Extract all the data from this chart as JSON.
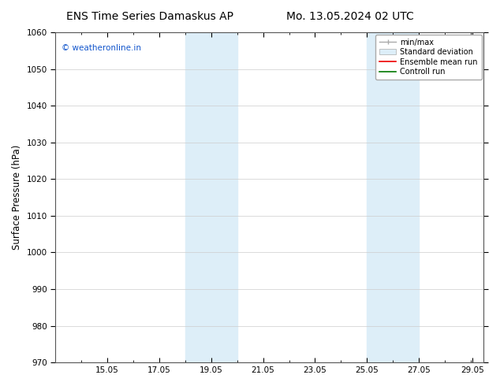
{
  "title_left": "ENS Time Series Damaskus AP",
  "title_right": "Mo. 13.05.2024 02 UTC",
  "ylabel": "Surface Pressure (hPa)",
  "ylim": [
    970,
    1060
  ],
  "yticks": [
    970,
    980,
    990,
    1000,
    1010,
    1020,
    1030,
    1040,
    1050,
    1060
  ],
  "xlim_start": 13.0,
  "xlim_end": 29.5,
  "xticks": [
    15.0,
    17.0,
    19.0,
    21.0,
    23.0,
    25.0,
    27.0,
    29.05
  ],
  "xticklabels": [
    "15.05",
    "17.05",
    "19.05",
    "21.05",
    "23.05",
    "25.05",
    "27.05",
    "29.05"
  ],
  "shaded_bands": [
    {
      "xmin": 18.0,
      "xmax": 19.0,
      "color": "#ddeef8"
    },
    {
      "xmin": 19.0,
      "xmax": 20.0,
      "color": "#ddeef8"
    },
    {
      "xmin": 25.0,
      "xmax": 26.0,
      "color": "#ddeef8"
    },
    {
      "xmin": 26.0,
      "xmax": 27.0,
      "color": "#ddeef8"
    }
  ],
  "watermark_text": "© weatheronline.in",
  "watermark_color": "#1155cc",
  "legend_labels": [
    "min/max",
    "Standard deviation",
    "Ensemble mean run",
    "Controll run"
  ],
  "background_color": "#ffffff",
  "title_fontsize": 10,
  "tick_fontsize": 7.5,
  "ylabel_fontsize": 8.5
}
